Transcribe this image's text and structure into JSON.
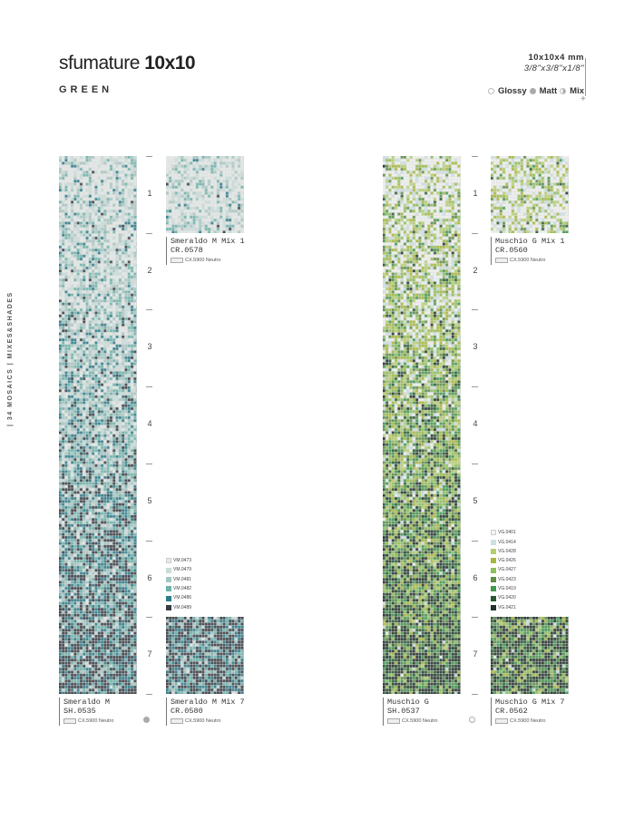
{
  "header": {
    "title_light": "sfumature",
    "title_bold": "10x10",
    "subtitle": "GREEN",
    "size_mm": "10x10x4 mm",
    "size_in": "3/8\"x3/8\"x1/8\"",
    "finishes": [
      {
        "label": "Glossy",
        "icon": "circle-outline-icon"
      },
      {
        "label": "Matt",
        "icon": "circle-filled-icon"
      },
      {
        "label": "Mix",
        "icon": "circle-half-icon"
      }
    ]
  },
  "side_label": "| 34 MOSAICS | MIXES&SHADES",
  "panels": [
    {
      "key": "smeraldo",
      "strip": {
        "name": "Smeraldo M",
        "code": "SH.0535",
        "grout": "CX.5900 Neutro",
        "finish": "matt"
      },
      "mix_top": {
        "name": "Smeraldo M Mix 1",
        "code": "CR.0578",
        "grout": "CX.5900 Neutro"
      },
      "mix_bottom": {
        "name": "Smeraldo M Mix 7",
        "code": "CR.0580",
        "grout": "CX.5900 Neutro"
      },
      "steps": [
        "1",
        "2",
        "3",
        "4",
        "5",
        "6",
        "7"
      ],
      "colors": [
        {
          "code": "VM.0473",
          "hex": "#e4eae7"
        },
        {
          "code": "VM.0479",
          "hex": "#c8dcd9"
        },
        {
          "code": "VM.0481",
          "hex": "#a6c6c2"
        },
        {
          "code": "VM.0482",
          "hex": "#6db3ab"
        },
        {
          "code": "VM.0486",
          "hex": "#2c7b89"
        },
        {
          "code": "VM.0489",
          "hex": "#383c44"
        }
      ]
    },
    {
      "key": "muschio",
      "strip": {
        "name": "Muschio G",
        "code": "SH.0537",
        "grout": "CX.5900 Neutro",
        "finish": "glossy"
      },
      "mix_top": {
        "name": "Muschio G Mix 1",
        "code": "CR.0560",
        "grout": "CX.5900 Neutro"
      },
      "mix_bottom": {
        "name": "Muschio G Mix 7",
        "code": "CR.0562",
        "grout": "CX.5900 Neutro"
      },
      "steps": [
        "1",
        "2",
        "3",
        "4",
        "5",
        "6",
        "7"
      ],
      "colors": [
        {
          "code": "VG.0401",
          "hex": "#f1f3f1"
        },
        {
          "code": "VG.0414",
          "hex": "#cde0e2"
        },
        {
          "code": "VG.0428",
          "hex": "#b6cf6d"
        },
        {
          "code": "VG.0426",
          "hex": "#a7b83a"
        },
        {
          "code": "VG.0427",
          "hex": "#8ebf59"
        },
        {
          "code": "VG.0423",
          "hex": "#5e8e49"
        },
        {
          "code": "VG.0419",
          "hex": "#3e994c"
        },
        {
          "code": "VG.0420",
          "hex": "#295932"
        },
        {
          "code": "VG.0421",
          "hex": "#22312a"
        }
      ]
    }
  ]
}
